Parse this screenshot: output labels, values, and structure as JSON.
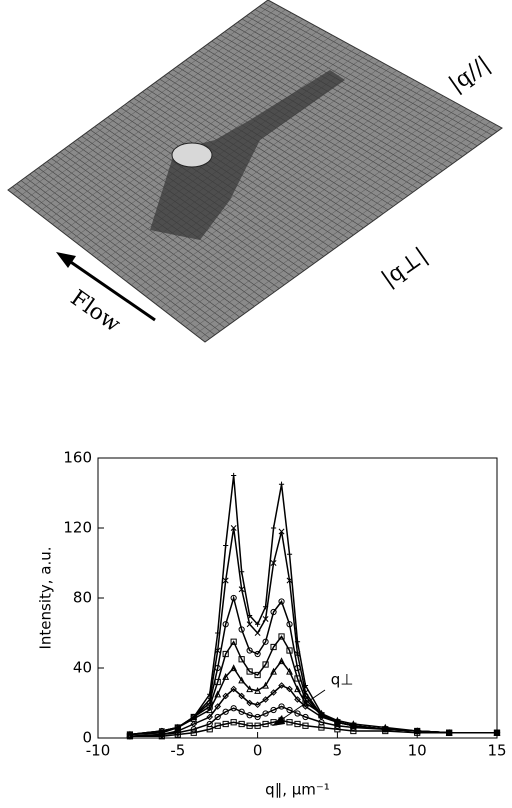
{
  "chart_data": [
    {
      "type": "surface",
      "labels": {
        "q_parallel": "|q//|",
        "q_perp": "|q⊥|",
        "flow": "Flow"
      }
    },
    {
      "type": "scatter",
      "ylabel": "Intensity, a.u.",
      "xlabel": "q∥, μm⁻¹",
      "annotation": "q⊥",
      "xlim": [
        -10,
        15
      ],
      "xticks": [
        -10,
        -5,
        0,
        5,
        10,
        15
      ],
      "ylim": [
        0,
        160
      ],
      "yticks": [
        0,
        40,
        80,
        120,
        160
      ],
      "x": [
        -8,
        -6,
        -5,
        -4,
        -3,
        -2.5,
        -2,
        -1.5,
        -1,
        -0.5,
        0,
        0.5,
        1,
        1.5,
        2,
        2.5,
        3,
        4,
        5,
        6,
        8,
        10,
        12,
        15
      ],
      "series": [
        {
          "color": "#000000",
          "marker": "plus",
          "values": [
            2,
            4,
            6,
            12,
            25,
            60,
            110,
            150,
            95,
            70,
            65,
            75,
            120,
            145,
            105,
            55,
            30,
            14,
            9,
            7,
            5,
            4,
            3,
            3
          ]
        },
        {
          "color": "#000000",
          "marker": "cross",
          "values": [
            2,
            4,
            6,
            12,
            22,
            50,
            90,
            120,
            85,
            65,
            60,
            68,
            100,
            118,
            90,
            48,
            26,
            13,
            9,
            7,
            5,
            4,
            3,
            3
          ]
        },
        {
          "color": "#000000",
          "marker": "circle",
          "values": [
            2,
            4,
            6,
            12,
            20,
            40,
            65,
            80,
            62,
            50,
            48,
            55,
            72,
            78,
            65,
            40,
            24,
            13,
            9,
            7,
            5,
            4,
            3,
            3
          ]
        },
        {
          "color": "#000000",
          "marker": "square",
          "values": [
            2,
            3,
            6,
            12,
            18,
            32,
            48,
            55,
            45,
            38,
            36,
            42,
            52,
            58,
            50,
            34,
            22,
            13,
            9,
            7,
            5,
            4,
            3,
            3
          ]
        },
        {
          "color": "#000000",
          "marker": "triangle",
          "values": [
            2,
            3,
            6,
            11,
            16,
            25,
            35,
            40,
            33,
            28,
            27,
            30,
            38,
            44,
            38,
            28,
            20,
            14,
            10,
            8,
            6,
            4,
            3,
            3
          ]
        },
        {
          "color": "#000000",
          "marker": "diamond",
          "values": [
            1,
            2,
            4,
            8,
            12,
            18,
            24,
            28,
            24,
            20,
            19,
            22,
            26,
            30,
            28,
            22,
            18,
            12,
            9,
            7,
            5,
            4,
            3,
            3
          ]
        },
        {
          "color": "#000000",
          "marker": "circle",
          "values": [
            1,
            2,
            3,
            5,
            8,
            12,
            15,
            17,
            15,
            13,
            12,
            14,
            16,
            18,
            16,
            14,
            12,
            9,
            7,
            6,
            5,
            4,
            3,
            3
          ]
        },
        {
          "color": "#000000",
          "marker": "square",
          "values": [
            1,
            1,
            2,
            3,
            5,
            7,
            8,
            9,
            8,
            7,
            7,
            8,
            9,
            10,
            9,
            8,
            7,
            6,
            5,
            4,
            4,
            3,
            3,
            3
          ]
        }
      ]
    }
  ]
}
